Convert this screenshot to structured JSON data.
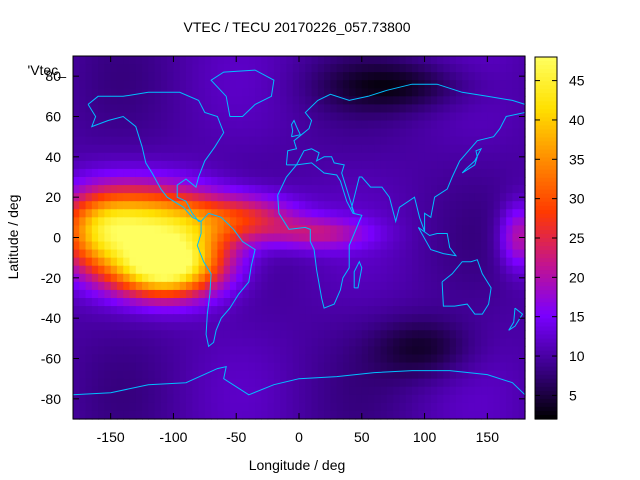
{
  "chart_data": {
    "type": "heatmap",
    "title": "VTEC / TECU 20170226_057.73800",
    "xlabel": "Longitude / deg",
    "ylabel": "Latitude / deg",
    "key_label": "'Vtec_",
    "xlim": [
      -180,
      180
    ],
    "ylim": [
      -90,
      90
    ],
    "x_ticks": [
      -150,
      -100,
      -50,
      0,
      50,
      100,
      150
    ],
    "y_ticks": [
      -80,
      -60,
      -40,
      -20,
      0,
      20,
      40,
      60,
      80
    ],
    "colorbar": {
      "range": [
        2,
        48
      ],
      "ticks": [
        5,
        10,
        15,
        20,
        25,
        30,
        35,
        40,
        45
      ],
      "palette": [
        "#000000",
        "#3b008a",
        "#7a00ff",
        "#c4148c",
        "#ff3a00",
        "#ff8c00",
        "#ffe000",
        "#ffff60"
      ]
    },
    "blobs": [
      {
        "lon": -160,
        "lat": 2,
        "rlon": 35,
        "rlat": 20,
        "value": 30
      },
      {
        "lon": -120,
        "lat": 8,
        "rlon": 50,
        "rlat": 18,
        "value": 32
      },
      {
        "lon": -110,
        "lat": -16,
        "rlon": 40,
        "rlat": 14,
        "value": 40
      },
      {
        "lon": -85,
        "lat": -4,
        "rlon": 40,
        "rlat": 22,
        "value": 26
      },
      {
        "lon": -40,
        "lat": 10,
        "rlon": 40,
        "rlat": 12,
        "value": 24
      },
      {
        "lon": 15,
        "lat": 2,
        "rlon": 40,
        "rlat": 8,
        "value": 20
      },
      {
        "lon": 175,
        "lat": 0,
        "rlon": 15,
        "rlat": 16,
        "value": 21
      },
      {
        "lon": 100,
        "lat": -55,
        "rlon": 40,
        "rlat": 15,
        "value": -3
      },
      {
        "lon": 80,
        "lat": 75,
        "rlon": 60,
        "rlat": 12,
        "value": -3
      }
    ],
    "background_value": 10,
    "coastline_color": "#00bfff"
  }
}
